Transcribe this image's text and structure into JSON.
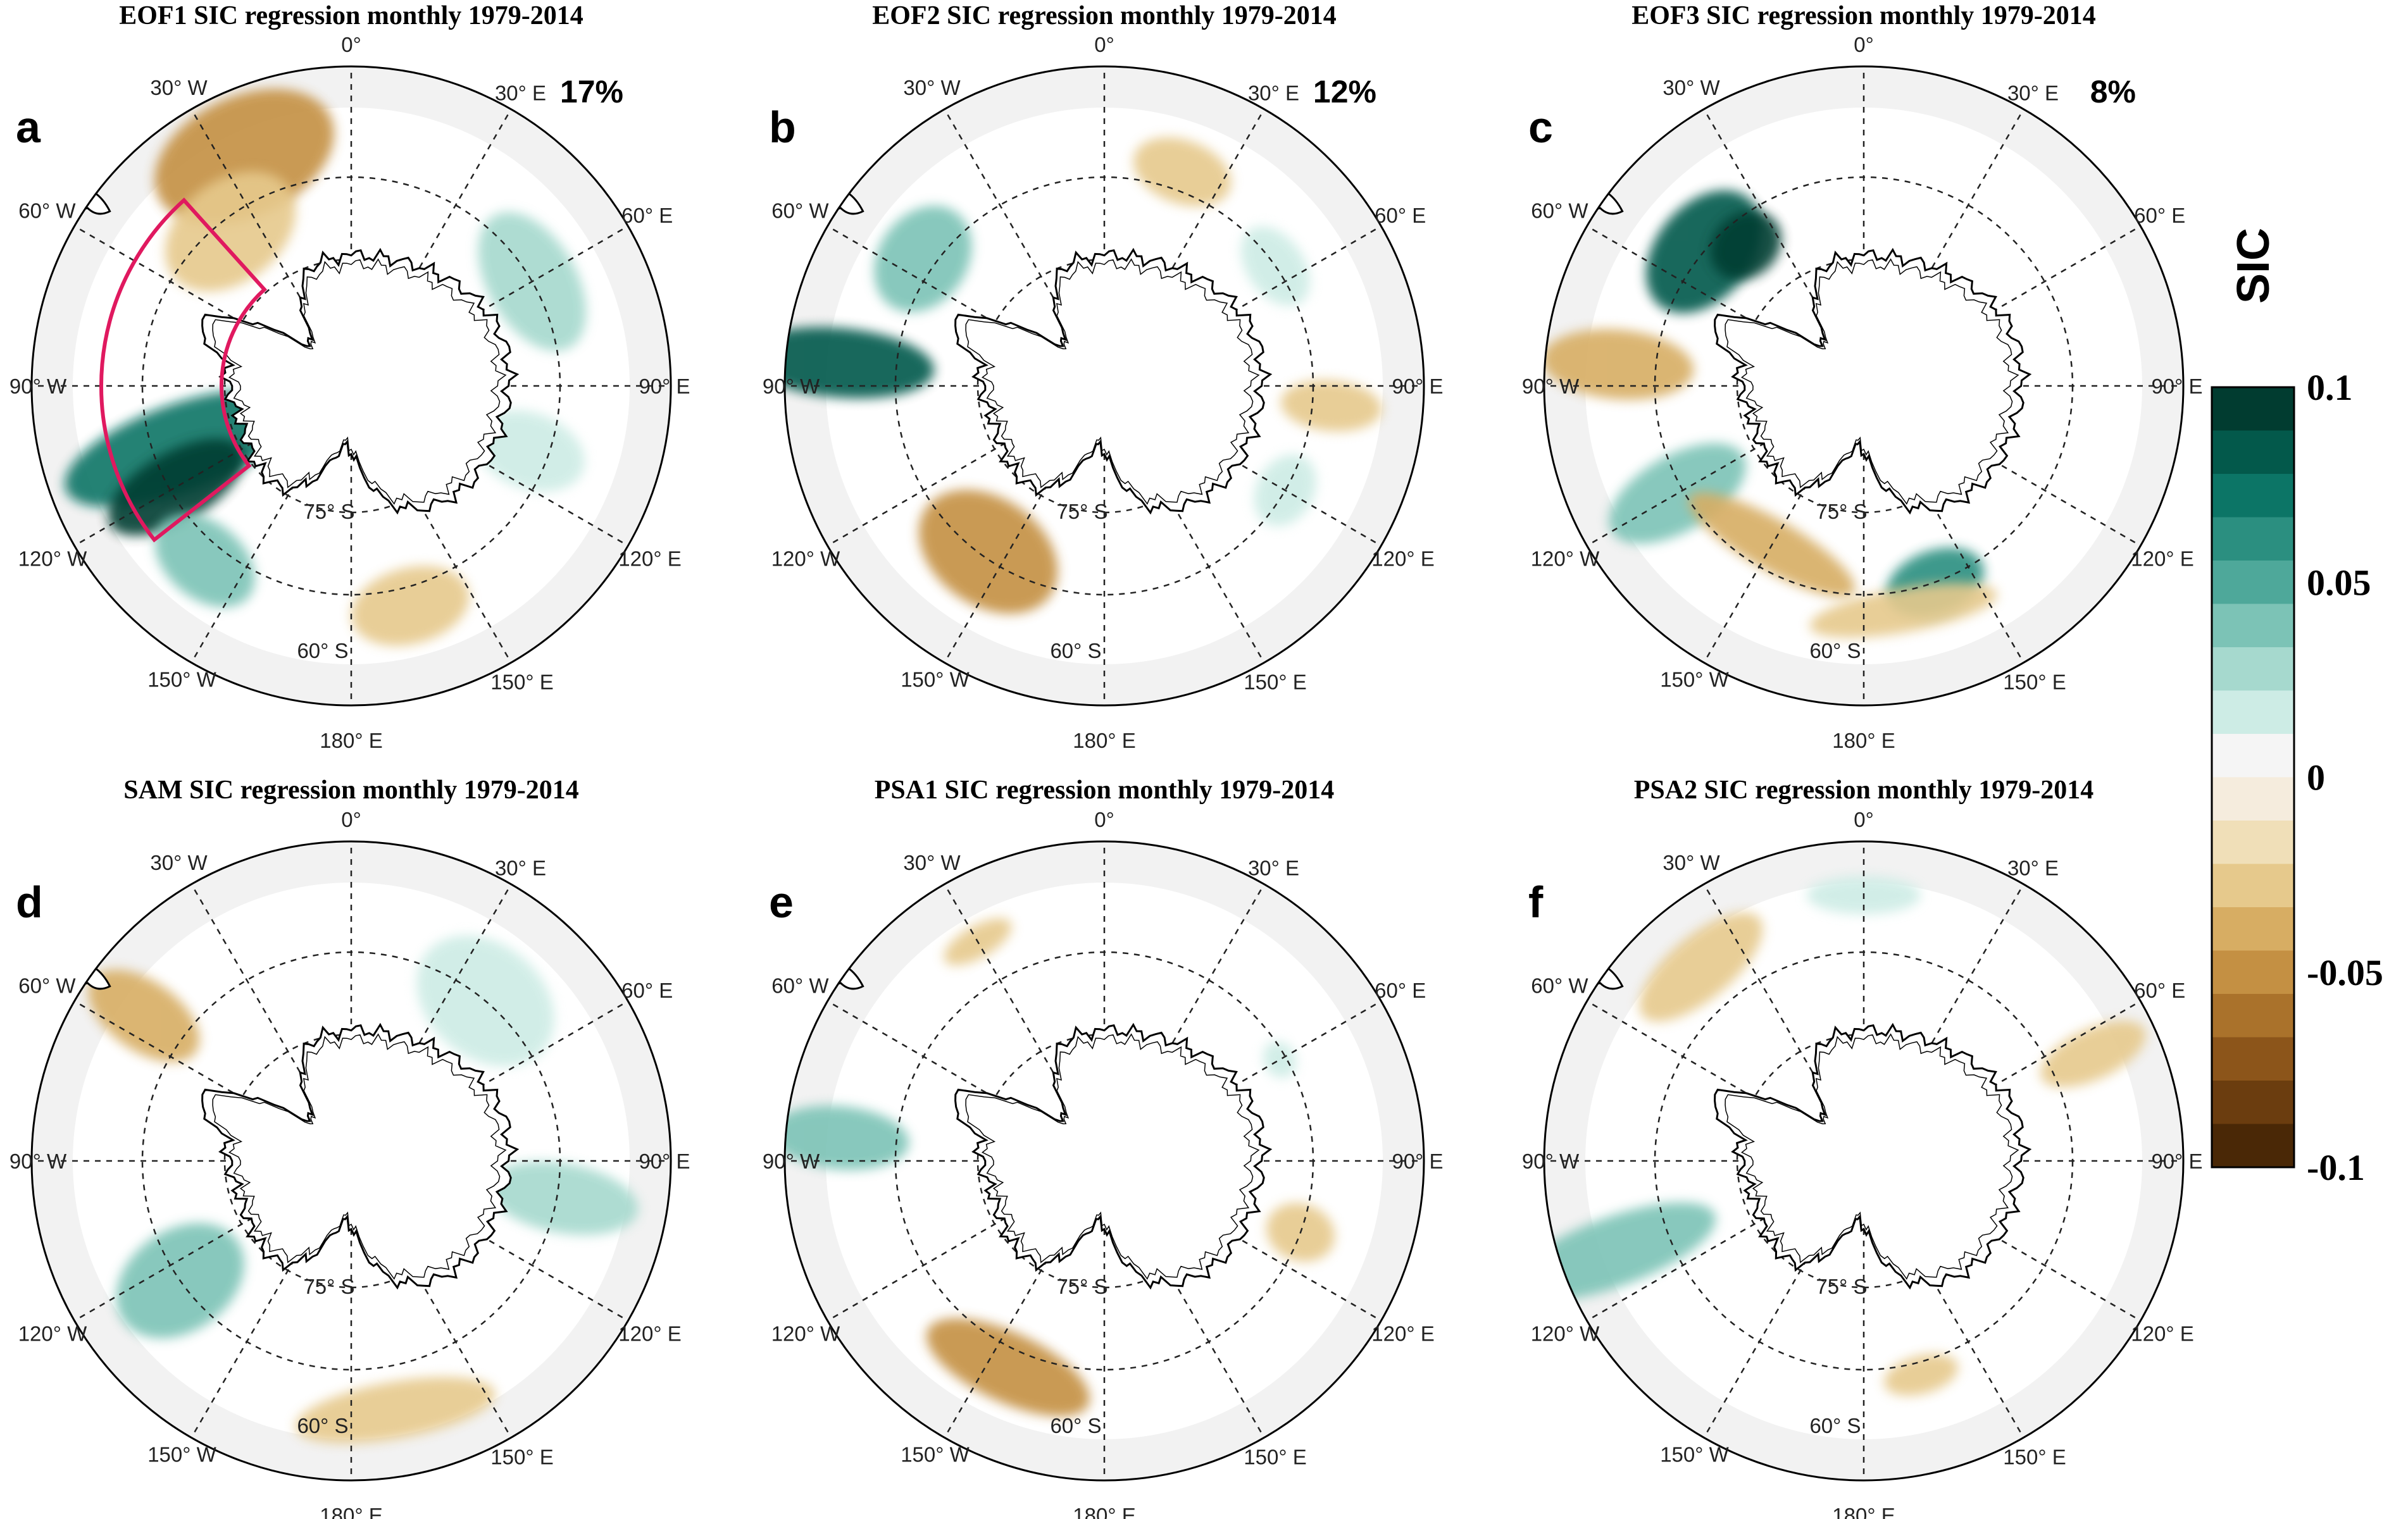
{
  "figure": {
    "panels": [
      {
        "letter": "a",
        "title": "EOF1 SIC regression monthly 1979-2014",
        "percent": "17%"
      },
      {
        "letter": "b",
        "title": "EOF2 SIC regression monthly 1979-2014",
        "percent": "12%"
      },
      {
        "letter": "c",
        "title": "EOF3 SIC regression monthly 1979-2014",
        "percent": "8%"
      },
      {
        "letter": "d",
        "title": "SAM SIC regression  monthly 1979-2014",
        "percent": ""
      },
      {
        "letter": "e",
        "title": "PSA1 SIC regression  monthly 1979-2014",
        "percent": ""
      },
      {
        "letter": "f",
        "title": "PSA2 SIC regression  monthly 1979-2014",
        "percent": ""
      }
    ],
    "map_labels": {
      "lon_0": "0°",
      "lon_30w": "30° W",
      "lon_30e": "30° E",
      "lon_60w": "60° W",
      "lon_60e": "60° E",
      "lon_90w": "90° W",
      "lon_90e": "90° E",
      "lon_120w": "120° W",
      "lon_120e": "120° E",
      "lon_150w": "150° W",
      "lon_150e": "150° E",
      "lon_180": "180° E",
      "lat_75s": "75° S",
      "lat_60s": "60° S"
    },
    "colorbar": {
      "title": "SIC",
      "ticks": [
        "0.1",
        "0.05",
        "0",
        "-0.05",
        "-0.1"
      ],
      "tick_values": [
        0.1,
        0.05,
        0,
        -0.05,
        -0.1
      ],
      "colors_top_to_bottom": [
        "#013c30",
        "#03594b",
        "#0c7566",
        "#2b8f80",
        "#4ea89a",
        "#7cc3b6",
        "#a6d9ce",
        "#cdece5",
        "#f5f5f5",
        "#f5ecdd",
        "#f0dfb8",
        "#e6c98c",
        "#d7ad63",
        "#c49043",
        "#aa722b",
        "#8c551a",
        "#6b3d0f",
        "#4a2806"
      ]
    }
  }
}
